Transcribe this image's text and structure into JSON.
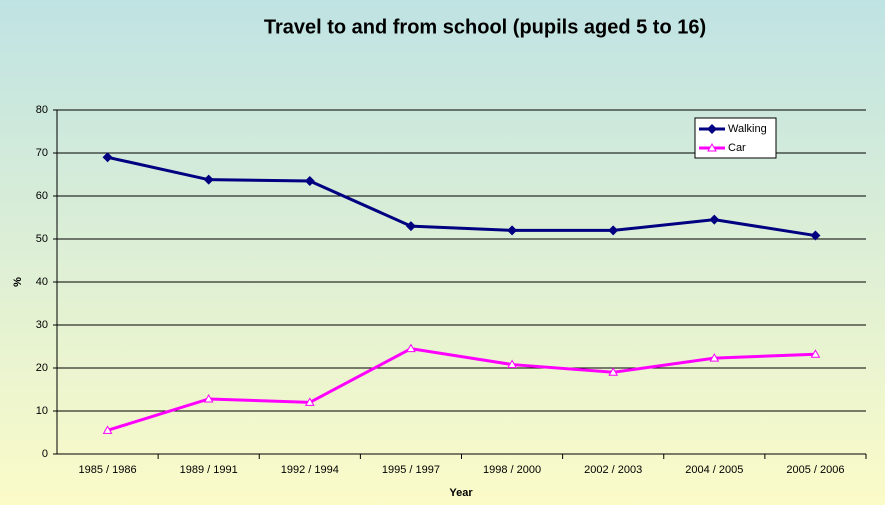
{
  "chart_data": {
    "type": "line",
    "title": "Travel to and from school (pupils aged 5 to 16)",
    "x_label": "Year",
    "y_label": "%",
    "categories": [
      "1985 / 1986",
      "1989 / 1991",
      "1992 / 1994",
      "1995 / 1997",
      "1998 / 2000",
      "2002 / 2003",
      "2004 / 2005",
      "2005 / 2006"
    ],
    "series": [
      {
        "name": "Walking",
        "color": "#000080",
        "marker": "diamond",
        "values": [
          69,
          63.8,
          63.5,
          53,
          52,
          52,
          54.5,
          50.8
        ]
      },
      {
        "name": "Car",
        "color": "#ff00ff",
        "marker": "triangle",
        "values": [
          5.5,
          12.8,
          12,
          24.5,
          20.8,
          19,
          22.3,
          23.2
        ]
      }
    ],
    "ylim": [
      0,
      80
    ],
    "yticks": [
      0,
      10,
      20,
      30,
      40,
      50,
      60,
      70,
      80
    ],
    "grid": true,
    "legend": "top-right"
  }
}
